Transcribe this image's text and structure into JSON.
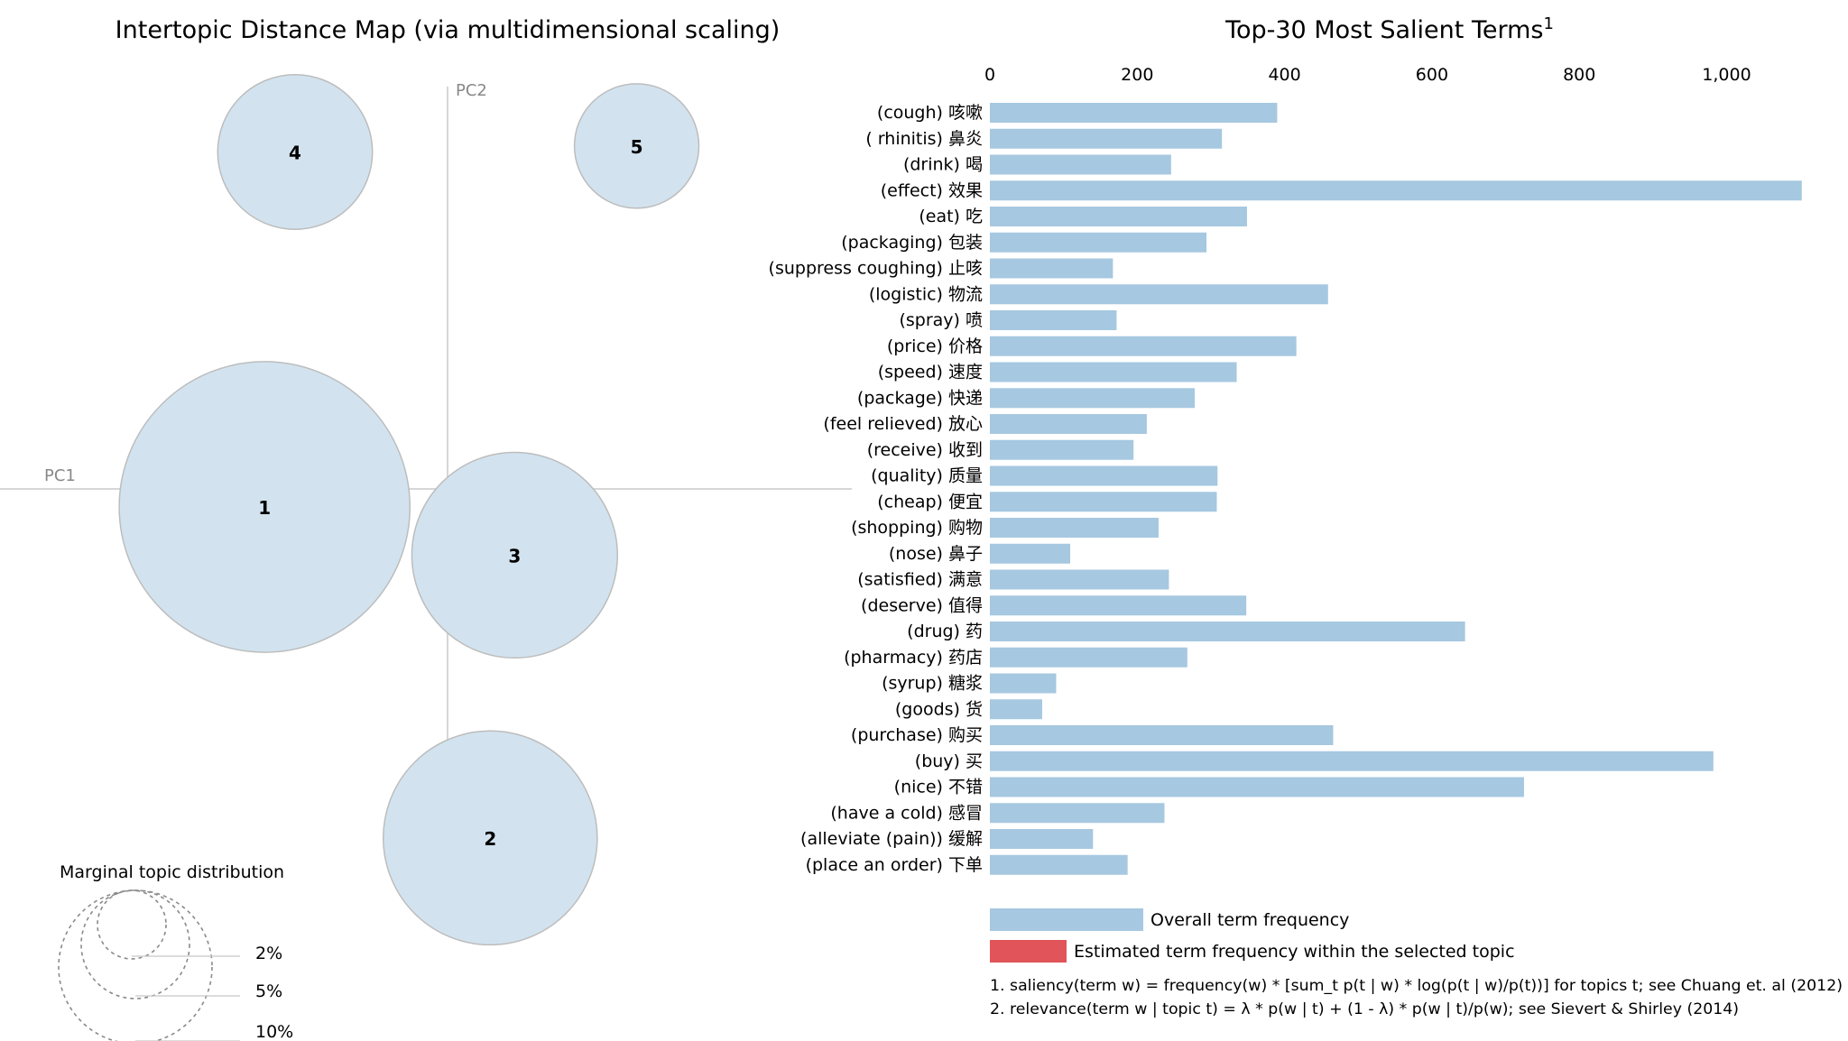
{
  "left_panel": {
    "title": "Intertopic Distance Map (via multidimensional scaling)",
    "pc1_label": "PC1",
    "pc2_label": "PC2",
    "legend": {
      "title": "Marginal topic distribution",
      "labels": [
        "2%",
        "5%",
        "10%"
      ]
    }
  },
  "footnotes": [
    "1. saliency(term w) = frequency(w) * [sum_t p(t | w) * log(p(t | w)/p(t))] for topics t; see Chuang et. al (2012)",
    "2. relevance(term w | topic t) = λ * p(w | t) + (1 - λ) * p(w | t)/p(w); see Sievert & Shirley (2014)"
  ],
  "colors": {
    "bubble_fill": "#d2e3ef",
    "bubble_stroke": "#bdbdbd",
    "bar_overall": "#a6c8e0",
    "bar_topic": "#e0545a",
    "axis_line": "#c8c8c8"
  },
  "chart_data": [
    {
      "type": "scatter",
      "title": "Intertopic Distance Map (via multidimensional scaling)",
      "xlabel": "PC1",
      "ylabel": "PC2",
      "topics": [
        {
          "id": "1",
          "pc1": -0.3,
          "pc2": -0.03,
          "share_pct": 12.0
        },
        {
          "id": "2",
          "pc1": 0.07,
          "pc2": -0.58,
          "share_pct": 6.5
        },
        {
          "id": "3",
          "pc1": 0.11,
          "pc2": -0.11,
          "share_pct": 6.0
        },
        {
          "id": "4",
          "pc1": -0.25,
          "pc2": 0.56,
          "share_pct": 3.4
        },
        {
          "id": "5",
          "pc1": 0.31,
          "pc2": 0.57,
          "share_pct": 2.2
        }
      ]
    },
    {
      "type": "bar",
      "orientation": "horizontal",
      "title": "Top-30 Most Salient Terms",
      "title_superscript": "1",
      "xlim": [
        0,
        1100
      ],
      "xticks": [
        0,
        200,
        400,
        600,
        800,
        1000
      ],
      "xtick_labels": [
        "0",
        "200",
        "400",
        "600",
        "800",
        "1,000"
      ],
      "categories": [
        "(cough) 咳嗽",
        "( rhinitis) 鼻炎",
        "(drink) 喝",
        "(effect) 效果",
        "(eat) 吃",
        "(packaging) 包装",
        "(suppress coughing) 止咳",
        "(logistic) 物流",
        "(spray) 喷",
        "(price) 价格",
        "(speed) 速度",
        "(package) 快递",
        "(feel relieved) 放心",
        "(receive) 收到",
        "(quality) 质量",
        "(cheap) 便宜",
        "(shopping) 购物",
        "(nose) 鼻子",
        "(satisfied) 满意",
        "(deserve) 值得",
        "(drug) 药",
        "(pharmacy) 药店",
        "(syrup) 糖浆",
        "(goods) 货",
        "(purchase) 购买",
        "(buy) 买",
        "(nice) 不错",
        "(have a cold) 感冒",
        "(alleviate (pain)) 缓解",
        "(place an order) 下单"
      ],
      "series": [
        {
          "name": "Overall term frequency",
          "values": [
            390,
            315,
            246,
            1102,
            349,
            294,
            167,
            459,
            172,
            416,
            335,
            278,
            213,
            195,
            309,
            308,
            229,
            109,
            243,
            348,
            645,
            268,
            90,
            71,
            466,
            982,
            725,
            237,
            140,
            187
          ]
        }
      ],
      "legend": [
        "Overall term frequency",
        "Estimated term frequency within the selected topic"
      ]
    }
  ]
}
